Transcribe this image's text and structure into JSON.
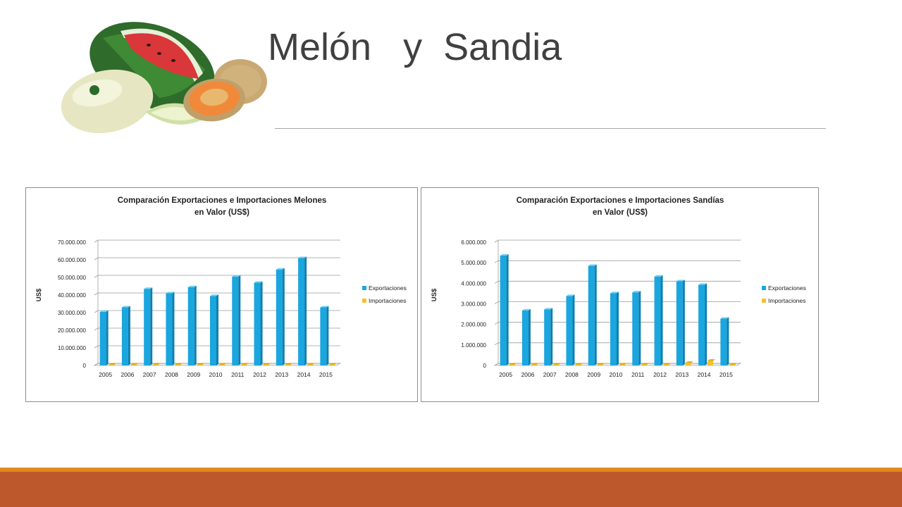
{
  "slide": {
    "title": "Melón   y  Sandia",
    "image": "melon-watermelon-photo"
  },
  "colors": {
    "exports": "#1aa6df",
    "imports": "#f2c12e",
    "footer_orange": "#df8a1d",
    "footer_rust": "#bd582c"
  },
  "chart_data": [
    {
      "type": "bar",
      "title_line1": "Comparación Exportaciones e Importaciones Melones",
      "title_line2": "en Valor (US$)",
      "ylabel": "US$",
      "categories": [
        "2005",
        "2006",
        "2007",
        "2008",
        "2009",
        "2010",
        "2011",
        "2012",
        "2013",
        "2014",
        "2015"
      ],
      "ylim": [
        0,
        70000000
      ],
      "yticks": [
        "0",
        "10.000.000",
        "20.000.000",
        "30.000.000",
        "40.000.000",
        "50.000.000",
        "60.000.000",
        "70.000.000"
      ],
      "legend_position": "right",
      "series": [
        {
          "name": "Exportaciones",
          "values": [
            30500000,
            33000000,
            43500000,
            41000000,
            44500000,
            39500000,
            50500000,
            47000000,
            54500000,
            61000000,
            33000000
          ]
        },
        {
          "name": "Importaciones",
          "values": [
            150000,
            100000,
            100000,
            150000,
            200000,
            100000,
            250000,
            150000,
            400000,
            500000,
            150000
          ]
        }
      ]
    },
    {
      "type": "bar",
      "title_line1": "Comparación Exportaciones e Importaciones Sandías",
      "title_line2": "en Valor (US$)",
      "ylabel": "US$",
      "categories": [
        "2005",
        "2006",
        "2007",
        "2008",
        "2009",
        "2010",
        "2011",
        "2012",
        "2013",
        "2014",
        "2015"
      ],
      "ylim": [
        0,
        6000000
      ],
      "yticks": [
        "0",
        "1.000.000",
        "2.000.000",
        "3.000.000",
        "4.000.000",
        "5.000.000",
        "6.000.000"
      ],
      "legend_position": "right",
      "series": [
        {
          "name": "Exportaciones",
          "values": [
            5350000,
            2680000,
            2730000,
            3380000,
            4850000,
            3520000,
            3560000,
            4330000,
            4100000,
            3930000,
            2280000
          ]
        },
        {
          "name": "Importaciones",
          "values": [
            15000,
            8000,
            8000,
            10000,
            15000,
            5000,
            15000,
            30000,
            130000,
            230000,
            40000
          ]
        }
      ]
    }
  ]
}
